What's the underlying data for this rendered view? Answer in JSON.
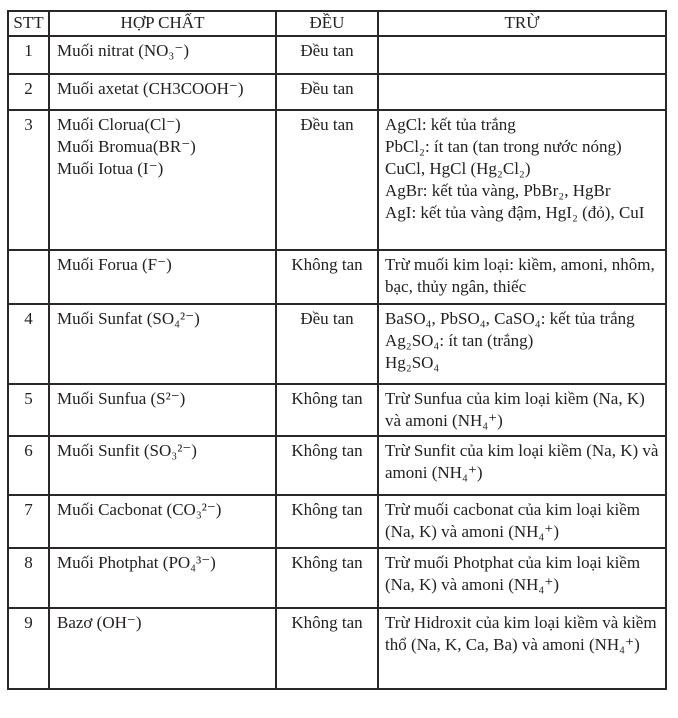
{
  "table": {
    "headers": [
      "STT",
      "HỢP CHẤT",
      "ĐỀU",
      "TRỪ"
    ],
    "rows": [
      {
        "stt": "1",
        "compound_lines": [
          "Muối nitrat (NO₃⁻)"
        ],
        "solubility": "Đều tan",
        "exception_lines": []
      },
      {
        "stt": "2",
        "compound_lines": [
          "Muối axetat (CH3COOH⁻)"
        ],
        "solubility": "Đều tan",
        "exception_lines": []
      },
      {
        "stt": "3",
        "compound_lines": [
          "Muối Clorua(Cl⁻)",
          "Muối Bromua(BR⁻)",
          "Muối Iotua (I⁻)"
        ],
        "solubility": "Đều tan",
        "exception_lines": [
          "AgCl: kết tủa trắng",
          "PbCl₂: ít tan (tan trong nước nóng)",
          "CuCl, HgCl (Hg₂Cl₂)",
          "AgBr: kết tủa vàng, PbBr₂, HgBr",
          "AgI: kết tủa vàng đậm, HgI₂ (đỏ), CuI"
        ]
      },
      {
        "stt": "",
        "compound_lines": [
          "Muối Forua (F⁻)"
        ],
        "solubility": "Không tan",
        "exception_lines": [
          "Trừ muối kim loại: kiềm, amoni, nhôm, bạc, thủy ngân, thiếc"
        ]
      },
      {
        "stt": "4",
        "compound_lines": [
          "Muối Sunfat (SO₄²⁻)"
        ],
        "solubility": "Đều tan",
        "exception_lines": [
          "BaSO₄, PbSO₄, CaSO₄: kết tủa trắng",
          "Ag₂SO₄: ít tan (trắng)",
          "Hg₂SO₄"
        ]
      },
      {
        "stt": "5",
        "compound_lines": [
          "Muối Sunfua (S²⁻)"
        ],
        "solubility": "Không tan",
        "exception_lines": [
          "Trừ Sunfua của kim loại kiềm (Na, K) và amoni (NH₄⁺)"
        ]
      },
      {
        "stt": "6",
        "compound_lines": [
          "Muối Sunfit (SO₃²⁻)"
        ],
        "solubility": "Không tan",
        "exception_lines": [
          "Trừ Sunfit của kim loại kiềm (Na, K) và amoni (NH₄⁺)"
        ]
      },
      {
        "stt": "7",
        "compound_lines": [
          "Muối Cacbonat (CO₃²⁻)"
        ],
        "solubility": "Không tan",
        "exception_lines": [
          "Trừ muối cacbonat của kim loại kiềm (Na, K) và amoni (NH₄⁺)"
        ]
      },
      {
        "stt": "8",
        "compound_lines": [
          "Muối Photphat (PO₄³⁻)"
        ],
        "solubility": "Không tan",
        "exception_lines": [
          "Trừ muối Photphat của kim loại kiềm (Na, K) và amoni (NH₄⁺)"
        ]
      },
      {
        "stt": "9",
        "compound_lines": [
          "Bazơ (OH⁻)"
        ],
        "solubility": "Không tan",
        "exception_lines": [
          "Trừ Hidroxit của kim loại kiềm và kiềm thổ (Na, K, Ca, Ba) và amoni (NH₄⁺)"
        ]
      }
    ]
  },
  "colors": {
    "text": "#242021",
    "border": "#2b2627",
    "background": "#ffffff"
  }
}
